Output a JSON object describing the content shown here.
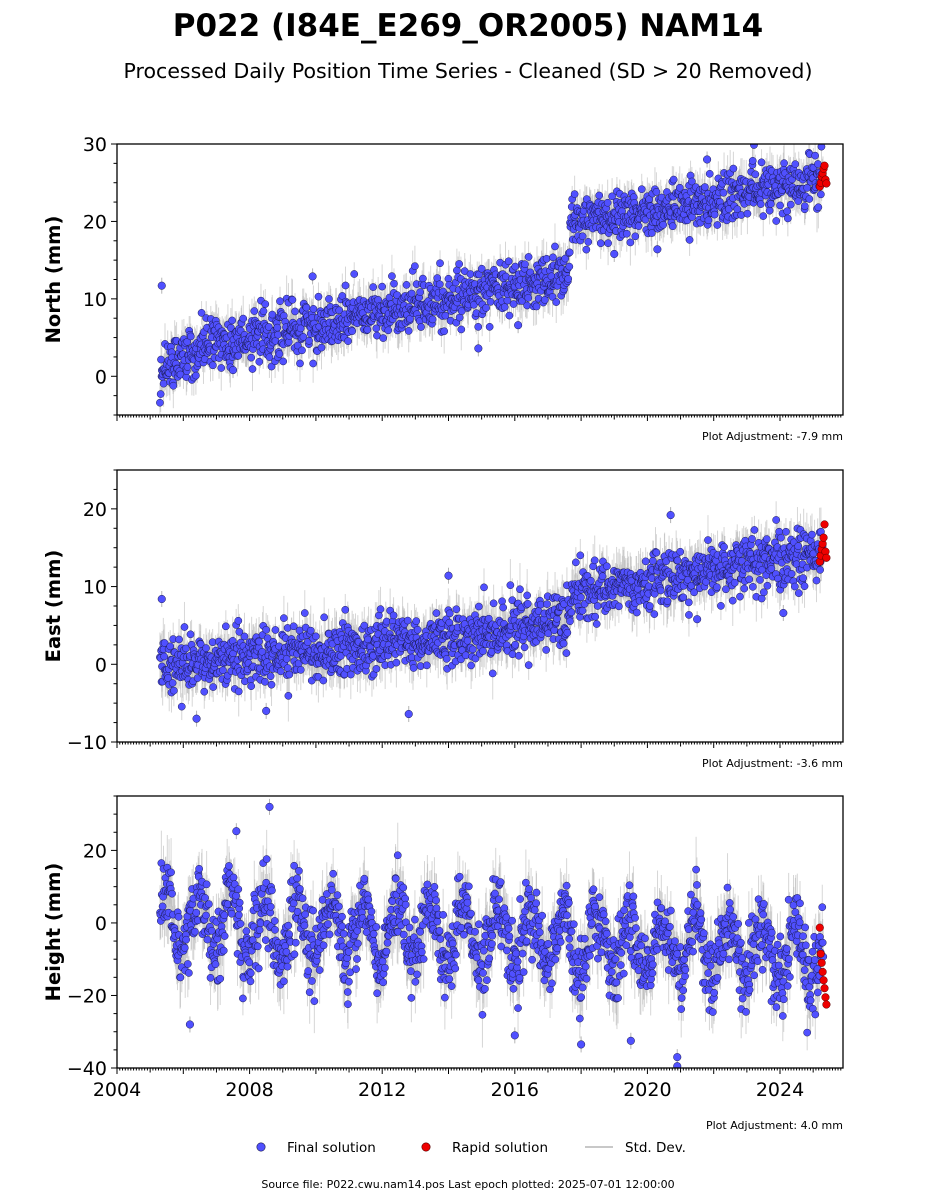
{
  "title": "P022 (I84E_E269_OR2005) NAM14",
  "subtitle": "Processed Daily Position Time Series - Cleaned (SD > 20 Removed)",
  "source_text": "Source file: P022.cwu.nam14.pos  Last epoch plotted: 2025-07-01 12:00:00",
  "legend": {
    "final": "Final solution",
    "rapid": "Rapid solution",
    "stddev": "Std. Dev."
  },
  "colors": {
    "final_fill": "#5050ff",
    "final_edge": "#1a1a4d",
    "rapid": "#ee0000",
    "stddev": "#b4b4b4"
  },
  "chart_data": [
    {
      "type": "scatter",
      "ylabel": "North (mm)",
      "adjustment": "Plot Adjustment: -7.9 mm",
      "xlim": [
        2004.0,
        2025.9
      ],
      "ylim": [
        -5,
        30
      ],
      "yticks": [
        0,
        10,
        20,
        30
      ],
      "x_tick_labels": [],
      "series": [
        {
          "name": "Final solution",
          "trend_points": [
            [
              2005.3,
              1.0
            ],
            [
              2006.0,
              3.0
            ],
            [
              2008.0,
              5.0
            ],
            [
              2010.0,
              6.7
            ],
            [
              2012.0,
              8.3
            ],
            [
              2014.0,
              10.0
            ],
            [
              2016.0,
              11.7
            ],
            [
              2017.6,
              13.2
            ],
            [
              2017.7,
              20.2
            ],
            [
              2020.0,
              21.3
            ],
            [
              2022.0,
              22.5
            ],
            [
              2024.0,
              24.3
            ],
            [
              2025.3,
              25.4
            ]
          ],
          "scatter_sd_mm": 1.6,
          "outliers": [
            [
              2005.35,
              11.7
            ],
            [
              2014.9,
              3.6
            ],
            [
              2016.1,
              6.6
            ],
            [
              2007.5,
              0.8
            ],
            [
              2009.9,
              12.9
            ],
            [
              2021.8,
              28.0
            ],
            [
              2019.0,
              15.8
            ],
            [
              2020.3,
              16.4
            ]
          ]
        },
        {
          "name": "Rapid solution",
          "x_range": [
            2025.2,
            2025.4
          ],
          "values": [
            24.5,
            25.0,
            25.8,
            26.2,
            26.8,
            27.2,
            25.4,
            24.9
          ]
        }
      ]
    },
    {
      "type": "scatter",
      "ylabel": "East (mm)",
      "adjustment": "Plot Adjustment: -3.6 mm",
      "xlim": [
        2004.0,
        2025.9
      ],
      "ylim": [
        -10,
        25
      ],
      "yticks": [
        -10,
        0,
        10,
        20
      ],
      "x_tick_labels": [],
      "series": [
        {
          "name": "Final solution",
          "trend_points": [
            [
              2005.3,
              0.3
            ],
            [
              2006.0,
              0.0
            ],
            [
              2008.0,
              0.8
            ],
            [
              2010.0,
              1.6
            ],
            [
              2012.0,
              2.5
            ],
            [
              2014.0,
              3.3
            ],
            [
              2016.0,
              4.7
            ],
            [
              2017.6,
              5.8
            ],
            [
              2017.7,
              8.6
            ],
            [
              2020.0,
              10.7
            ],
            [
              2022.0,
              12.0
            ],
            [
              2024.0,
              13.5
            ],
            [
              2025.3,
              14.3
            ]
          ],
          "scatter_sd_mm": 1.8,
          "outliers": [
            [
              2005.35,
              8.4
            ],
            [
              2006.4,
              -7.0
            ],
            [
              2008.5,
              -6.0
            ],
            [
              2012.8,
              -6.4
            ],
            [
              2014.0,
              11.4
            ],
            [
              2020.7,
              19.2
            ],
            [
              2021.5,
              5.8
            ],
            [
              2024.1,
              6.6
            ]
          ]
        },
        {
          "name": "Rapid solution",
          "x_range": [
            2025.2,
            2025.4
          ],
          "values": [
            13.2,
            14.0,
            14.8,
            15.5,
            16.3,
            18.0,
            14.5,
            13.7
          ]
        }
      ]
    },
    {
      "type": "scatter",
      "ylabel": "Height (mm)",
      "adjustment": "Plot Adjustment: 4.0 mm",
      "xlim": [
        2004.0,
        2025.9
      ],
      "ylim": [
        -40,
        35
      ],
      "yticks": [
        -40,
        -20,
        0,
        20
      ],
      "x_tick_labels": [
        "2004",
        "2008",
        "2012",
        "2016",
        "2020",
        "2024"
      ],
      "series": [
        {
          "name": "Final solution",
          "trend_points": [
            [
              2005.3,
              0.0
            ],
            [
              2010.0,
              -1.5
            ],
            [
              2015.0,
              -3.5
            ],
            [
              2020.0,
              -6.0
            ],
            [
              2025.3,
              -9.0
            ]
          ],
          "seasonal_amplitude_mm": 8,
          "scatter_sd_mm": 5,
          "outliers": [
            [
              2008.6,
              32.0
            ],
            [
              2007.6,
              25.3
            ],
            [
              2020.9,
              -37.0
            ],
            [
              2020.9,
              -39.5
            ],
            [
              2019.5,
              -32.5
            ],
            [
              2016.0,
              -31.0
            ],
            [
              2018.0,
              -33.5
            ],
            [
              2006.2,
              -28.0
            ]
          ]
        },
        {
          "name": "Rapid solution",
          "x_range": [
            2025.2,
            2025.4
          ],
          "values": [
            -1.3,
            -8.5,
            -11.0,
            -13.5,
            -15.8,
            -18.0,
            -20.5,
            -22.5
          ]
        }
      ]
    }
  ]
}
